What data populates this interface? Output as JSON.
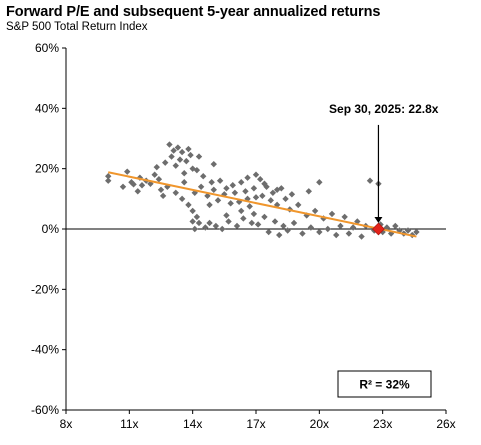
{
  "title": "Forward P/E and subsequent 5-year annualized returns",
  "subtitle": "S&P 500 Total Return Index",
  "colors": {
    "points": "#6d6d6d",
    "trend": "#f0962c",
    "marker": "#e2231a",
    "axis": "#000000"
  },
  "chart_data": {
    "type": "scatter",
    "title": "Forward P/E and subsequent 5-year annualized returns",
    "subtitle": "S&P 500 Total Return Index",
    "xlabel": "",
    "ylabel": "",
    "xlim": [
      8,
      26
    ],
    "ylim": [
      -60,
      60
    ],
    "x_ticks": [
      8,
      11,
      14,
      17,
      20,
      23,
      26
    ],
    "x_tick_labels": [
      "8x",
      "11x",
      "14x",
      "17x",
      "20x",
      "23x",
      "26x"
    ],
    "y_ticks": [
      60,
      40,
      20,
      0,
      -20,
      -40,
      -60
    ],
    "y_tick_labels": [
      "60%",
      "40%",
      "20%",
      "0%",
      "-20%",
      "-40%",
      "-60%"
    ],
    "grid": false,
    "points": [
      [
        10.0,
        17.5
      ],
      [
        10.0,
        16.0
      ],
      [
        10.7,
        14.0
      ],
      [
        10.9,
        19.0
      ],
      [
        11.1,
        15.5
      ],
      [
        11.2,
        14.8
      ],
      [
        11.5,
        17.0
      ],
      [
        11.6,
        14.5
      ],
      [
        11.8,
        16.0
      ],
      [
        12.0,
        15.0
      ],
      [
        12.2,
        18.0
      ],
      [
        12.4,
        16.5
      ],
      [
        12.5,
        13.0
      ],
      [
        12.6,
        11.0
      ],
      [
        12.7,
        22.0
      ],
      [
        12.8,
        14.0
      ],
      [
        12.9,
        28.0
      ],
      [
        13.0,
        24.0
      ],
      [
        13.1,
        26.0
      ],
      [
        13.2,
        21.0
      ],
      [
        13.3,
        27.0
      ],
      [
        13.4,
        23.0
      ],
      [
        13.5,
        25.5
      ],
      [
        13.6,
        15.5
      ],
      [
        13.7,
        22.5
      ],
      [
        13.8,
        26.5
      ],
      [
        13.9,
        24.5
      ],
      [
        14.0,
        20.0
      ],
      [
        13.2,
        12.0
      ],
      [
        13.5,
        10.0
      ],
      [
        13.8,
        8.0
      ],
      [
        14.0,
        6.0
      ],
      [
        14.1,
        12.0
      ],
      [
        14.2,
        4.0
      ],
      [
        14.3,
        2.0
      ],
      [
        14.1,
        0.0
      ],
      [
        14.0,
        2.5
      ],
      [
        14.4,
        14.0
      ],
      [
        14.5,
        17.5
      ],
      [
        14.6,
        0.5
      ],
      [
        14.7,
        11.0
      ],
      [
        14.8,
        2.0
      ],
      [
        14.9,
        15.5
      ],
      [
        15.0,
        13.0
      ],
      [
        15.1,
        1.0
      ],
      [
        15.2,
        9.5
      ],
      [
        15.3,
        16.0
      ],
      [
        15.4,
        0.0
      ],
      [
        15.5,
        11.5
      ],
      [
        15.6,
        13.5
      ],
      [
        15.7,
        2.5
      ],
      [
        15.8,
        8.5
      ],
      [
        15.9,
        14.5
      ],
      [
        16.0,
        12.0
      ],
      [
        16.1,
        1.0
      ],
      [
        16.2,
        9.0
      ],
      [
        16.3,
        15.5
      ],
      [
        16.4,
        3.5
      ],
      [
        16.5,
        12.5
      ],
      [
        16.6,
        17.0
      ],
      [
        16.7,
        7.5
      ],
      [
        16.8,
        2.0
      ],
      [
        16.9,
        13.5
      ],
      [
        17.0,
        10.5
      ],
      [
        17.1,
        1.5
      ],
      [
        17.2,
        16.5
      ],
      [
        17.3,
        11.0
      ],
      [
        17.4,
        4.0
      ],
      [
        17.5,
        14.0
      ],
      [
        17.6,
        -1.0
      ],
      [
        17.7,
        9.5
      ],
      [
        17.8,
        12.0
      ],
      [
        17.9,
        2.5
      ],
      [
        18.0,
        8.0
      ],
      [
        18.1,
        -2.0
      ],
      [
        18.2,
        13.5
      ],
      [
        18.3,
        1.0
      ],
      [
        18.4,
        10.0
      ],
      [
        18.5,
        -0.5
      ],
      [
        18.6,
        6.5
      ],
      [
        18.7,
        11.5
      ],
      [
        18.8,
        2.0
      ],
      [
        19.0,
        8.0
      ],
      [
        19.2,
        -1.5
      ],
      [
        19.4,
        4.5
      ],
      [
        19.6,
        0.5
      ],
      [
        19.8,
        6.0
      ],
      [
        20.0,
        15.5
      ],
      [
        20.0,
        -1.0
      ],
      [
        20.2,
        3.5
      ],
      [
        20.4,
        0.0
      ],
      [
        20.6,
        5.0
      ],
      [
        20.8,
        -2.0
      ],
      [
        21.0,
        1.0
      ],
      [
        21.2,
        4.0
      ],
      [
        21.4,
        -1.5
      ],
      [
        21.6,
        0.5
      ],
      [
        21.8,
        2.5
      ],
      [
        22.0,
        -2.5
      ],
      [
        22.2,
        1.0
      ],
      [
        22.4,
        16.0
      ],
      [
        22.6,
        -0.5
      ],
      [
        22.8,
        15.0
      ],
      [
        22.9,
        1.5
      ],
      [
        23.0,
        -1.0
      ],
      [
        23.2,
        0.5
      ],
      [
        23.4,
        -1.5
      ],
      [
        23.6,
        1.0
      ],
      [
        23.8,
        -0.5
      ],
      [
        24.0,
        -1.5
      ],
      [
        24.2,
        -0.5
      ],
      [
        24.4,
        -2.0
      ],
      [
        24.6,
        -1.0
      ],
      [
        14.3,
        24.0
      ],
      [
        14.2,
        19.5
      ],
      [
        13.6,
        18.5
      ],
      [
        15.0,
        21.5
      ],
      [
        12.3,
        20.5
      ],
      [
        11.4,
        12.5
      ],
      [
        16.9,
        5.0
      ],
      [
        17.4,
        15.0
      ],
      [
        18.0,
        13.0
      ],
      [
        16.3,
        6.0
      ],
      [
        19.5,
        12.5
      ],
      [
        14.8,
        8.0
      ],
      [
        17.0,
        18.0
      ],
      [
        16.6,
        10.0
      ],
      [
        15.6,
        4.5
      ]
    ],
    "trendline": {
      "x": [
        10.0,
        24.6
      ],
      "y": [
        18.8,
        -2.5
      ]
    },
    "highlight": {
      "x": 22.8,
      "y": 0.0,
      "label": "Sep 30, 2025:  22.8x"
    },
    "r_squared_label": "R² = 32%"
  }
}
